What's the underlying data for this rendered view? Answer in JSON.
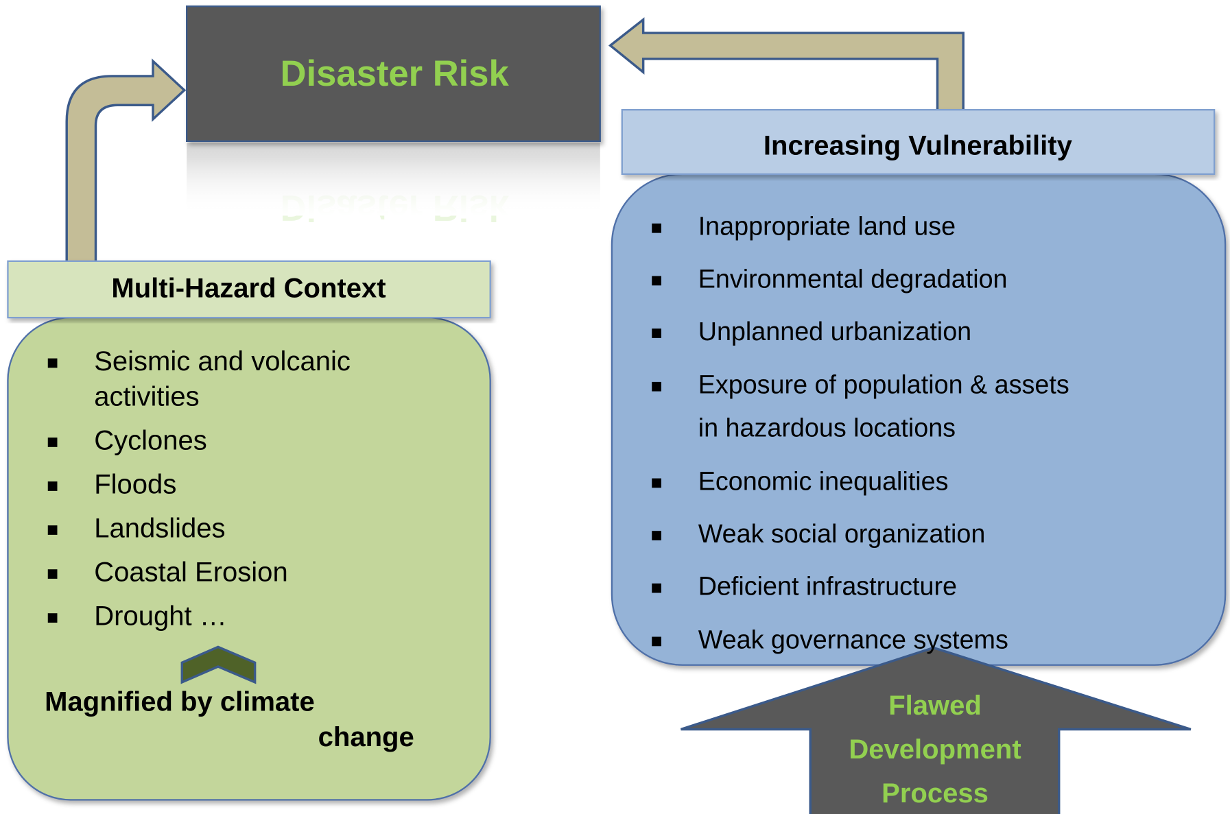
{
  "title": "Disaster Risk",
  "hazards": {
    "heading": "Multi-Hazard Context",
    "items": [
      [
        "Seismic and volcanic",
        "activities"
      ],
      [
        "Cyclones"
      ],
      [
        "Floods"
      ],
      [
        "Landslides"
      ],
      [
        "Coastal Erosion"
      ],
      [
        "Drought …"
      ]
    ],
    "note": [
      "Magnified by climate",
      "change"
    ]
  },
  "vulnerability": {
    "heading": "Increasing Vulnerability",
    "items": [
      [
        "Inappropriate land use"
      ],
      [
        "Environmental degradation"
      ],
      [
        "Unplanned urbanization"
      ],
      [
        "Exposure of population & assets",
        "in hazardous locations"
      ],
      [
        "Economic inequalities"
      ],
      [
        "Weak social organization"
      ],
      [
        "Deficient infrastructure"
      ],
      [
        "Weak governance systems"
      ]
    ]
  },
  "driver": [
    "Flawed",
    "Development",
    "Process"
  ]
}
